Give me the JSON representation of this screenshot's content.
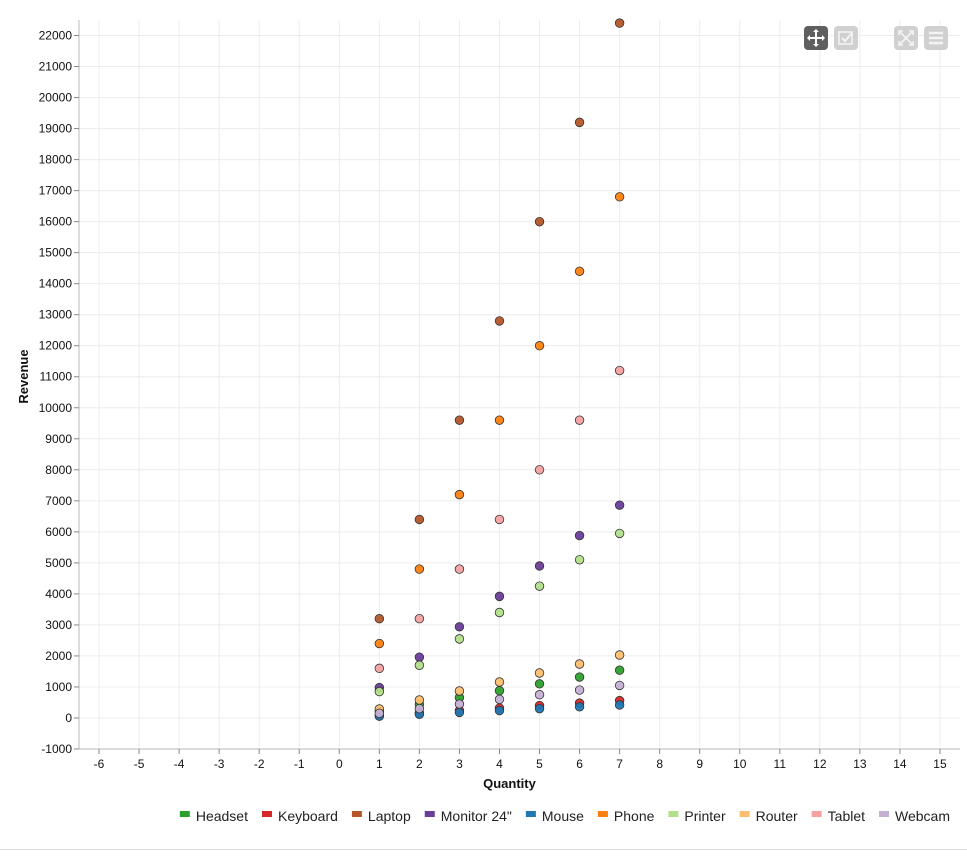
{
  "toolbar": {
    "buttons": [
      {
        "name": "pan-tool-button",
        "icon": "move-arrows-icon",
        "active": true
      },
      {
        "name": "select-tool-button",
        "icon": "checkbox-icon",
        "active": false
      },
      {
        "name": "zoom-extent-button",
        "icon": "expand-icon",
        "active": false
      },
      {
        "name": "menu-button",
        "icon": "hamburger-icon",
        "active": false
      }
    ]
  },
  "chart_data": {
    "type": "scatter",
    "title": "",
    "xlabel": "Quantity",
    "ylabel": "Revenue",
    "xlim": [
      -6.5,
      15.5
    ],
    "ylim": [
      -1000,
      22500
    ],
    "xticks": [
      -6,
      -5,
      -4,
      -3,
      -2,
      -1,
      0,
      1,
      2,
      3,
      4,
      5,
      6,
      7,
      8,
      9,
      10,
      11,
      12,
      13,
      14,
      15
    ],
    "yticks": [
      -1000,
      0,
      1000,
      2000,
      3000,
      4000,
      5000,
      6000,
      7000,
      8000,
      9000,
      10000,
      11000,
      12000,
      13000,
      14000,
      15000,
      16000,
      17000,
      18000,
      19000,
      20000,
      21000,
      22000
    ],
    "grid": true,
    "legend_position": "bottom-right",
    "series": [
      {
        "name": "Headset",
        "color": "#2ca02c",
        "x": [
          1,
          2,
          3,
          4,
          5,
          6,
          7
        ],
        "y": [
          220,
          440,
          660,
          880,
          1100,
          1320,
          1540
        ]
      },
      {
        "name": "Keyboard",
        "color": "#d62728",
        "x": [
          1,
          2,
          3,
          4,
          5,
          6,
          7
        ],
        "y": [
          80,
          160,
          240,
          320,
          400,
          480,
          560
        ]
      },
      {
        "name": "Laptop",
        "color": "#b5562b",
        "x": [
          1,
          2,
          3,
          4,
          5,
          6,
          7
        ],
        "y": [
          3200,
          6400,
          9600,
          12800,
          16000,
          19200,
          22400
        ]
      },
      {
        "name": "Monitor 24\"",
        "color": "#6a3d9a",
        "x": [
          1,
          2,
          3,
          4,
          5,
          6,
          7
        ],
        "y": [
          980,
          1960,
          2940,
          3920,
          4900,
          5880,
          6860
        ]
      },
      {
        "name": "Mouse",
        "color": "#1f77b4",
        "x": [
          1,
          2,
          3,
          4,
          5,
          6,
          7
        ],
        "y": [
          60,
          120,
          180,
          240,
          300,
          360,
          420
        ]
      },
      {
        "name": "Phone",
        "color": "#ff7f0e",
        "x": [
          1,
          2,
          3,
          4,
          5,
          6,
          7
        ],
        "y": [
          2400,
          4800,
          7200,
          9600,
          12000,
          14400,
          16800
        ]
      },
      {
        "name": "Printer",
        "color": "#b2df8a",
        "x": [
          1,
          2,
          3,
          4,
          5,
          6,
          7
        ],
        "y": [
          850,
          1700,
          2550,
          3400,
          4250,
          5100,
          5950
        ]
      },
      {
        "name": "Router",
        "color": "#fdbf6f",
        "x": [
          1,
          2,
          3,
          4,
          5,
          6,
          7
        ],
        "y": [
          290,
          580,
          870,
          1160,
          1450,
          1740,
          2030
        ]
      },
      {
        "name": "Tablet",
        "color": "#f4a1a1",
        "x": [
          1,
          2,
          3,
          4,
          5,
          6,
          7
        ],
        "y": [
          1600,
          3200,
          4800,
          6400,
          8000,
          9600,
          11200
        ]
      },
      {
        "name": "Webcam",
        "color": "#c5b0d5",
        "x": [
          1,
          2,
          3,
          4,
          5,
          6,
          7
        ],
        "y": [
          150,
          300,
          450,
          600,
          750,
          900,
          1050
        ]
      }
    ]
  }
}
